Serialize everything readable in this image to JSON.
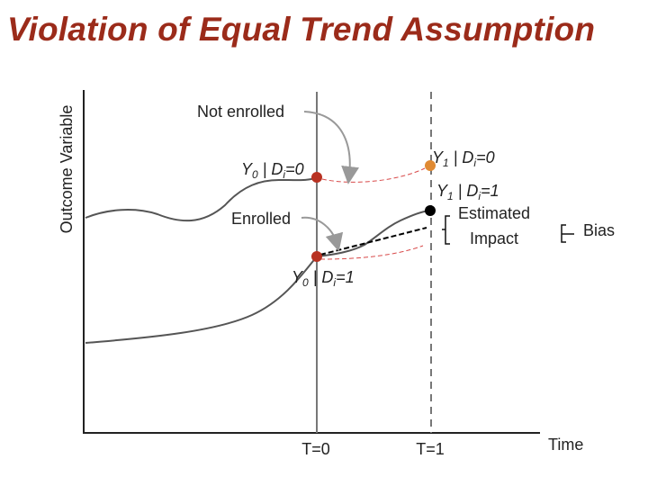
{
  "title": "Violation of Equal Trend Assumption",
  "axis": {
    "y_label": "Outcome Variable",
    "x_label": "Time",
    "t0_label": "T=0",
    "t1_label": "T=1"
  },
  "labels": {
    "not_enrolled": "Not enrolled",
    "enrolled": "Enrolled",
    "estimated_impact_line1": "Estimated",
    "estimated_impact_line2": "Impact",
    "bias": "Bias"
  },
  "points": {
    "y0_d0": {
      "main": "Y",
      "sub": "0",
      "mid": " | D",
      "sub2": "i",
      "tail": "=0"
    },
    "y1_d0": {
      "main": "Y",
      "sub": "1",
      "mid": " | D",
      "sub2": "i",
      "tail": "=0"
    },
    "y1_d1": {
      "main": "Y",
      "sub": "1",
      "mid": " | D",
      "sub2": "i",
      "tail": "=1"
    },
    "y0_d1": {
      "main": "Y",
      "sub": "0",
      "mid": " | D",
      "sub2": "i",
      "tail": "=1"
    }
  },
  "colors": {
    "title": "#9b2b1a",
    "curve": "#555555",
    "dot_red": "#b83222",
    "dot_orange": "#e08a33",
    "dot_black": "#000000",
    "dashed_red": "#d84a4a"
  }
}
